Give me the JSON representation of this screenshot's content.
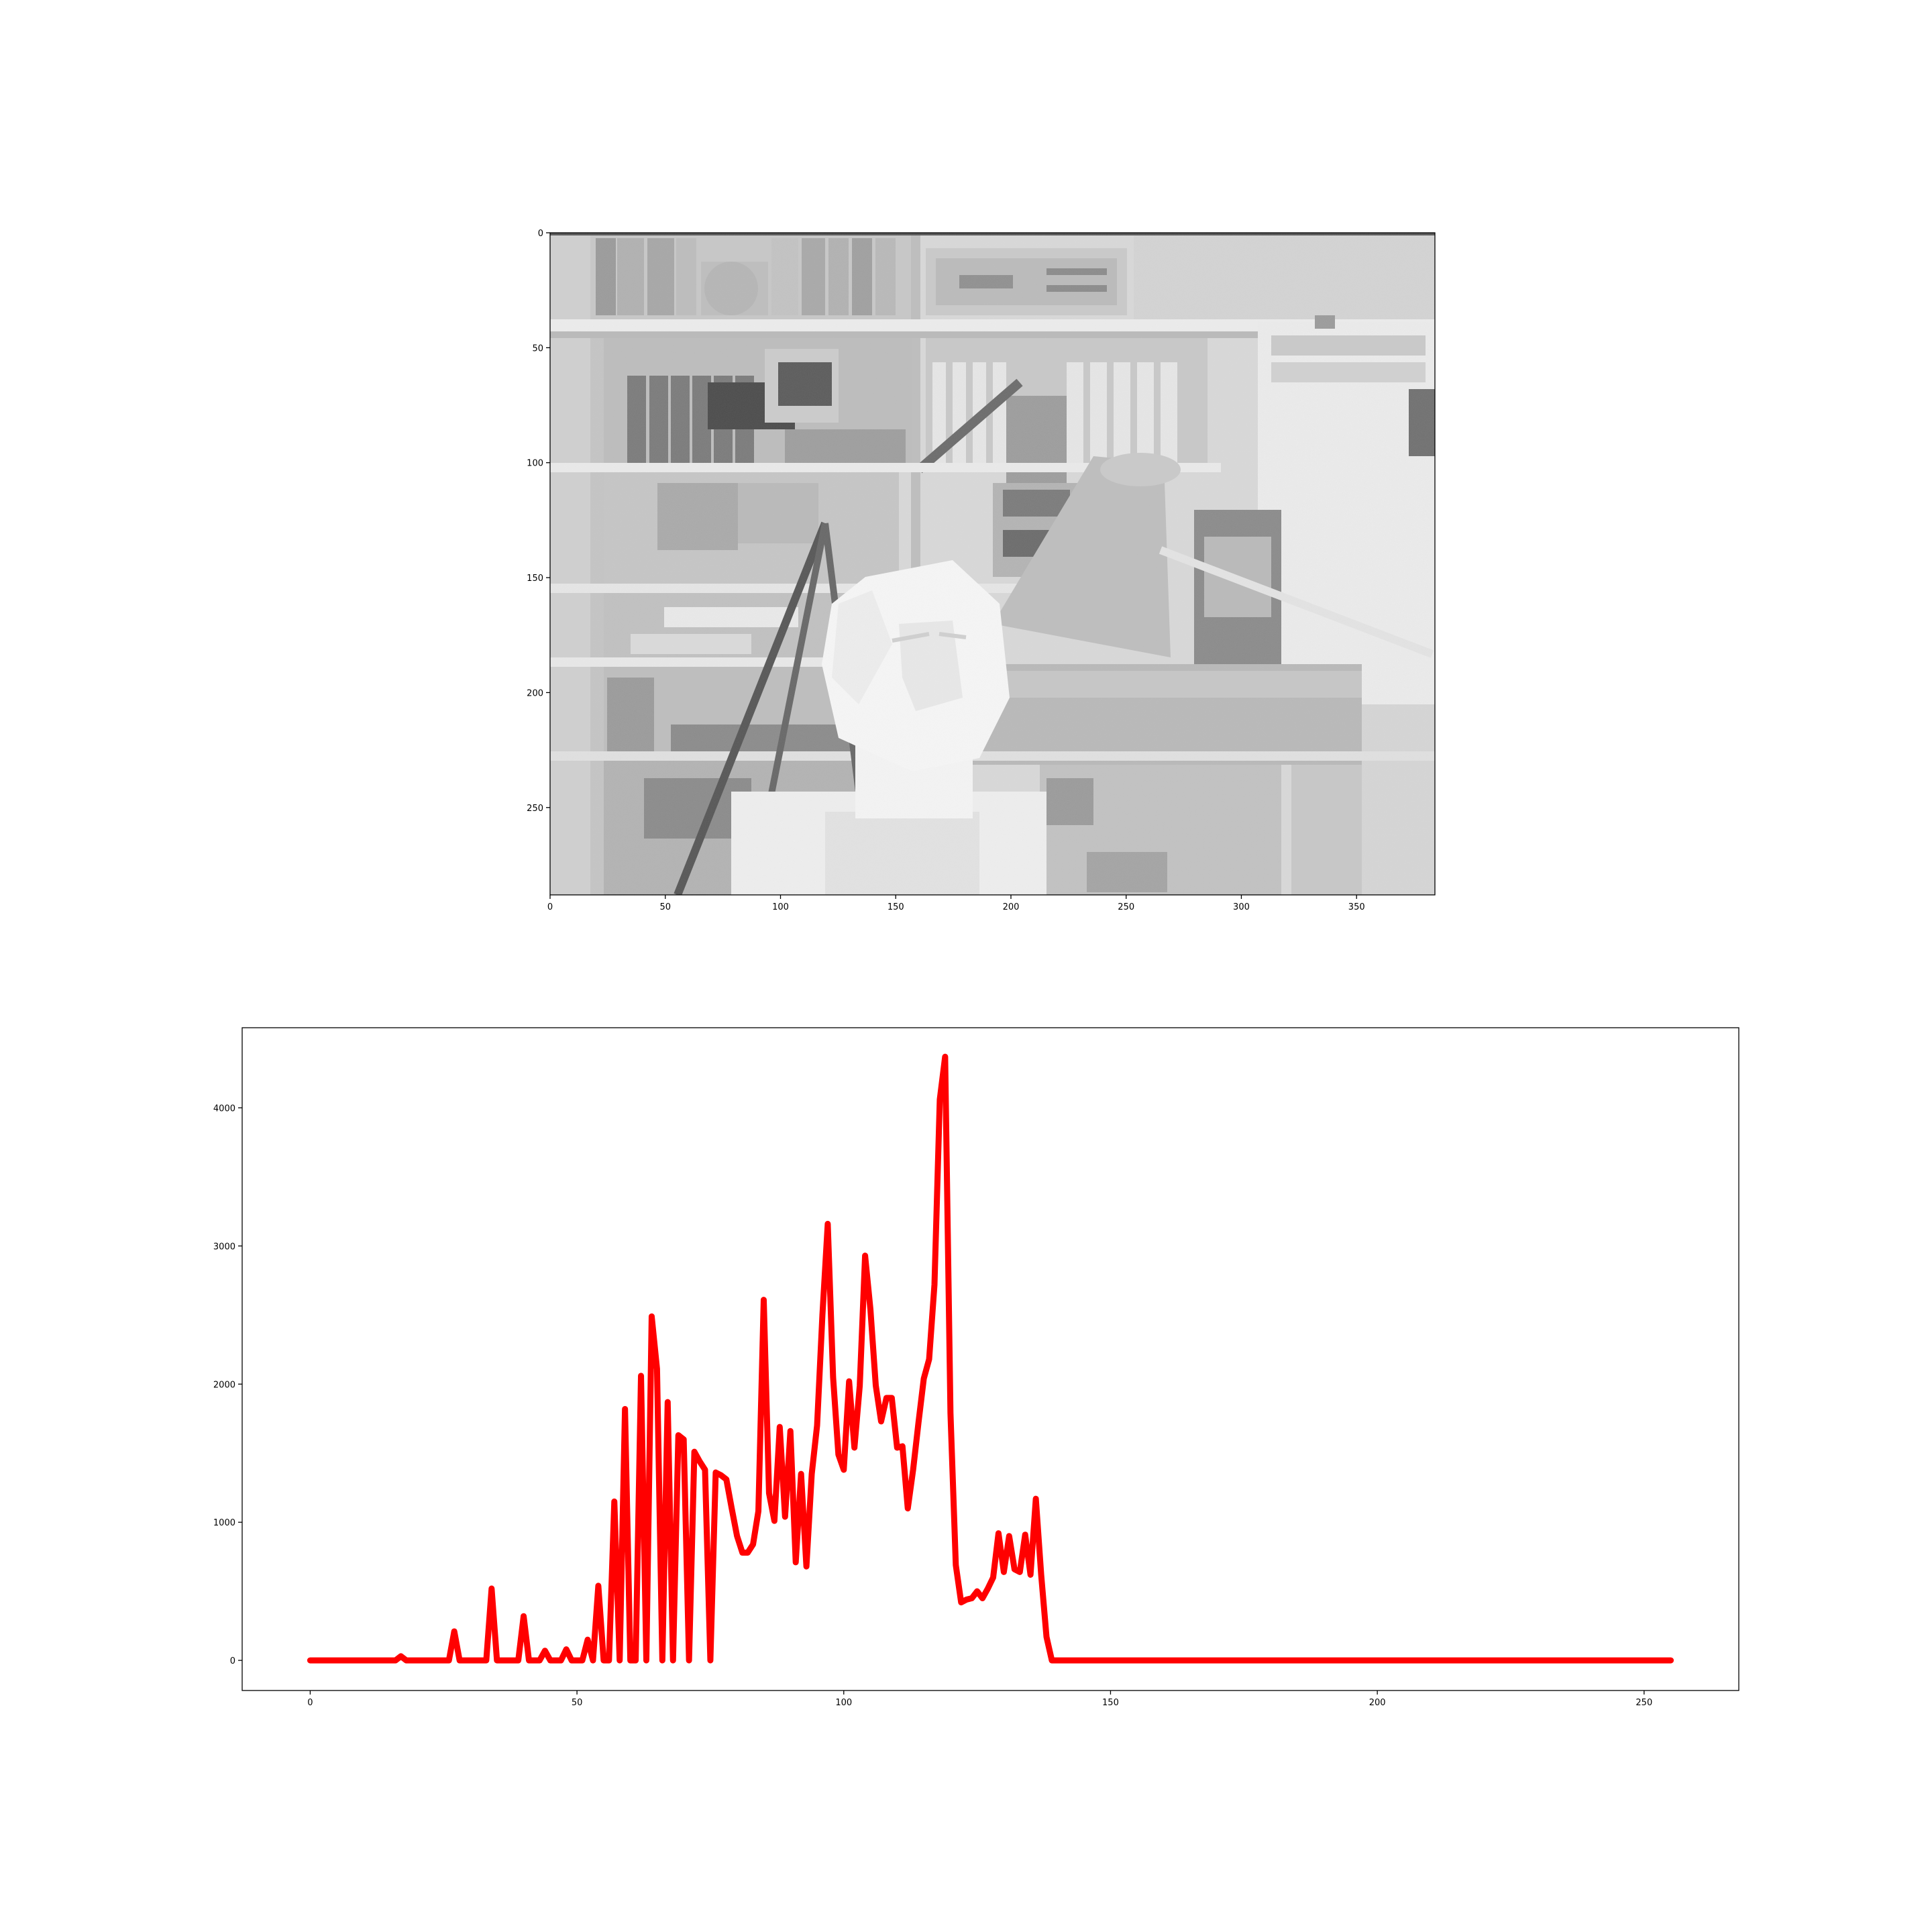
{
  "chart_data": [
    {
      "type": "image",
      "description_free": true,
      "xlim": [
        0,
        384
      ],
      "ylim": [
        288,
        0
      ],
      "xticks": [
        0,
        50,
        100,
        150,
        200,
        250,
        300,
        350
      ],
      "yticks": [
        0,
        50,
        100,
        150,
        200,
        250
      ],
      "title": "",
      "xlabel": "",
      "ylabel": ""
    },
    {
      "type": "line",
      "title": "",
      "xlabel": "",
      "ylabel": "",
      "xlim": [
        -12.75,
        267.75
      ],
      "ylim": [
        -218,
        4580
      ],
      "xticks": [
        0,
        50,
        100,
        150,
        200,
        250
      ],
      "yticks": [
        0,
        1000,
        2000,
        3000,
        4000
      ],
      "grid": false,
      "color": "#ff0000",
      "series": [
        {
          "x": [
            0,
            16,
            17,
            18,
            26,
            27,
            28,
            33,
            34,
            35,
            39,
            40,
            41,
            43,
            44,
            45,
            47,
            48,
            49,
            51,
            52,
            53,
            54,
            55,
            56,
            57,
            58,
            59,
            60,
            61,
            62,
            63,
            64,
            65,
            66,
            67,
            68,
            69,
            70,
            71,
            72,
            73,
            74,
            75,
            76,
            77,
            78,
            79,
            80,
            81,
            82,
            83,
            84,
            85,
            86,
            87,
            88,
            89,
            90,
            91,
            92,
            93,
            94,
            95,
            96,
            97,
            98,
            99,
            100,
            101,
            102,
            103,
            104,
            105,
            106,
            107,
            108,
            109,
            110,
            111,
            112,
            113,
            114,
            115,
            116,
            117,
            118,
            119,
            120,
            121,
            122,
            123,
            124,
            125,
            126,
            127,
            128,
            129,
            130,
            131,
            132,
            133,
            134,
            135,
            136,
            137,
            138,
            139,
            255
          ],
          "y": [
            0,
            0,
            30,
            0,
            0,
            210,
            0,
            0,
            520,
            0,
            0,
            320,
            0,
            0,
            70,
            0,
            0,
            80,
            0,
            0,
            150,
            0,
            540,
            0,
            0,
            1150,
            0,
            1820,
            0,
            0,
            2060,
            0,
            2490,
            2110,
            0,
            1870,
            0,
            1630,
            1600,
            0,
            1510,
            1440,
            1380,
            0,
            1360,
            1340,
            1310,
            1100,
            900,
            780,
            780,
            840,
            1080,
            2610,
            1210,
            1010,
            1690,
            1040,
            1660,
            710,
            1350,
            680,
            1350,
            1700,
            2500,
            3160,
            2050,
            1490,
            1380,
            2020,
            1540,
            1990,
            2930,
            2540,
            1990,
            1730,
            1900,
            1900,
            1540,
            1550,
            1100,
            1380,
            1720,
            2040,
            2180,
            2720,
            4060,
            4370,
            1790,
            690,
            420,
            440,
            450,
            500,
            450,
            520,
            600,
            920,
            640,
            900,
            660,
            640,
            910,
            620,
            1170,
            620,
            170,
            0,
            0
          ]
        }
      ]
    }
  ]
}
